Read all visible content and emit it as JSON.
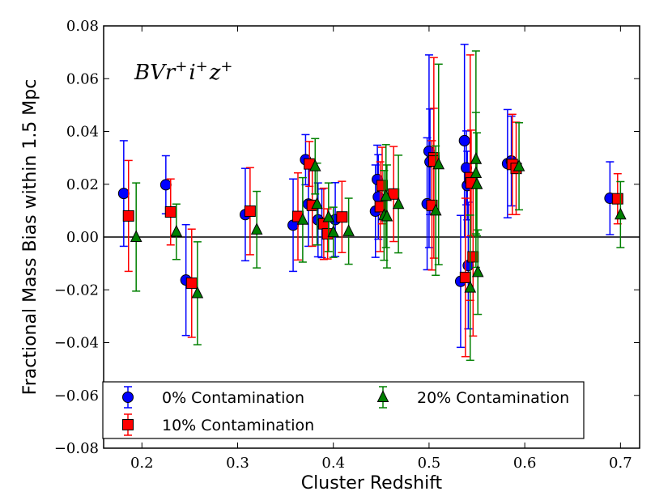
{
  "chart_data": {
    "type": "scatter",
    "title": "",
    "xlabel": "Cluster Redshift",
    "ylabel": "Fractional Mass Bias within 1.5 Mpc",
    "xlim": [
      0.16,
      0.72
    ],
    "ylim": [
      -0.08,
      0.08
    ],
    "grid": false,
    "legend_position": "bottom-left",
    "reference_line_y": 0.0,
    "annotation": {
      "base": "BVr",
      "parts": [
        {
          "t": "r",
          "sup": "+"
        },
        {
          "t": "i",
          "sup": "+"
        },
        {
          "t": "z",
          "sup": "+"
        }
      ],
      "text": "BVr+i+z+"
    },
    "x_ticks": [
      0.2,
      0.3,
      0.4,
      0.5,
      0.6,
      0.7
    ],
    "x_tick_labels": [
      "0.2",
      "0.3",
      "0.4",
      "0.5",
      "0.6",
      "0.7"
    ],
    "y_ticks": [
      -0.08,
      -0.06,
      -0.04,
      -0.02,
      0.0,
      0.02,
      0.04,
      0.06,
      0.08
    ],
    "y_tick_labels": [
      "−0.08",
      "−0.06",
      "−0.04",
      "−0.02",
      "0.00",
      "0.02",
      "0.04",
      "0.06",
      "0.08"
    ],
    "series": [
      {
        "name": "0% Contamination",
        "marker": "circle",
        "color": "#0000ff",
        "points": [
          {
            "x": 0.181,
            "y": 0.0165,
            "err": 0.02
          },
          {
            "x": 0.225,
            "y": 0.0198,
            "err": 0.011
          },
          {
            "x": 0.246,
            "y": -0.0163,
            "err": 0.021
          },
          {
            "x": 0.308,
            "y": 0.0085,
            "err": 0.0175
          },
          {
            "x": 0.358,
            "y": 0.0045,
            "err": 0.0175
          },
          {
            "x": 0.371,
            "y": 0.0293,
            "err": 0.0095
          },
          {
            "x": 0.374,
            "y": 0.0125,
            "err": 0.016
          },
          {
            "x": 0.384,
            "y": 0.0065,
            "err": 0.014
          },
          {
            "x": 0.388,
            "y": 0.0052,
            "err": 0.013
          },
          {
            "x": 0.402,
            "y": 0.0066,
            "err": 0.014
          },
          {
            "x": 0.444,
            "y": 0.0098,
            "err": 0.0175
          },
          {
            "x": 0.446,
            "y": 0.0218,
            "err": 0.013
          },
          {
            "x": 0.447,
            "y": 0.0152,
            "err": 0.016
          },
          {
            "x": 0.498,
            "y": 0.0126,
            "err": 0.025
          },
          {
            "x": 0.5,
            "y": 0.0325,
            "err": 0.0365
          },
          {
            "x": 0.501,
            "y": 0.0285,
            "err": 0.02
          },
          {
            "x": 0.533,
            "y": -0.0168,
            "err": 0.025
          },
          {
            "x": 0.537,
            "y": 0.0365,
            "err": 0.0365
          },
          {
            "x": 0.539,
            "y": 0.0262,
            "err": 0.014
          },
          {
            "x": 0.54,
            "y": 0.0195,
            "err": 0.013
          },
          {
            "x": 0.541,
            "y": -0.0108,
            "err": 0.024
          },
          {
            "x": 0.582,
            "y": 0.0278,
            "err": 0.0205
          },
          {
            "x": 0.586,
            "y": 0.0288,
            "err": 0.017
          },
          {
            "x": 0.689,
            "y": 0.0147,
            "err": 0.0138
          }
        ]
      },
      {
        "name": "10% Contamination",
        "marker": "square",
        "color": "#ff0000",
        "points": [
          {
            "x": 0.186,
            "y": 0.008,
            "err": 0.021
          },
          {
            "x": 0.23,
            "y": 0.0095,
            "err": 0.0125
          },
          {
            "x": 0.252,
            "y": -0.0175,
            "err": 0.0205
          },
          {
            "x": 0.313,
            "y": 0.0098,
            "err": 0.0165
          },
          {
            "x": 0.363,
            "y": 0.0078,
            "err": 0.0165
          },
          {
            "x": 0.375,
            "y": 0.0277,
            "err": 0.0085
          },
          {
            "x": 0.378,
            "y": 0.012,
            "err": 0.0155
          },
          {
            "x": 0.39,
            "y": 0.005,
            "err": 0.0135
          },
          {
            "x": 0.394,
            "y": 0.0012,
            "err": 0.0095
          },
          {
            "x": 0.409,
            "y": 0.0076,
            "err": 0.0135
          },
          {
            "x": 0.449,
            "y": 0.0115,
            "err": 0.017
          },
          {
            "x": 0.451,
            "y": 0.0195,
            "err": 0.0145
          },
          {
            "x": 0.463,
            "y": 0.0163,
            "err": 0.018
          },
          {
            "x": 0.503,
            "y": 0.012,
            "err": 0.0245
          },
          {
            "x": 0.505,
            "y": 0.03,
            "err": 0.038
          },
          {
            "x": 0.505,
            "y": 0.0288,
            "err": 0.02
          },
          {
            "x": 0.538,
            "y": -0.0153,
            "err": 0.03
          },
          {
            "x": 0.543,
            "y": 0.0225,
            "err": 0.0465
          },
          {
            "x": 0.544,
            "y": 0.0205,
            "err": 0.02
          },
          {
            "x": 0.546,
            "y": -0.0075,
            "err": 0.03
          },
          {
            "x": 0.587,
            "y": 0.0275,
            "err": 0.019
          },
          {
            "x": 0.591,
            "y": 0.026,
            "err": 0.0175
          },
          {
            "x": 0.697,
            "y": 0.0145,
            "err": 0.0095
          }
        ]
      },
      {
        "name": "20% Contamination",
        "marker": "triangle",
        "color": "#008000",
        "points": [
          {
            "x": 0.194,
            "y": 0.0,
            "err": 0.0205
          },
          {
            "x": 0.236,
            "y": 0.002,
            "err": 0.0105
          },
          {
            "x": 0.258,
            "y": -0.0213,
            "err": 0.0195
          },
          {
            "x": 0.32,
            "y": 0.0028,
            "err": 0.0145
          },
          {
            "x": 0.368,
            "y": 0.0065,
            "err": 0.016
          },
          {
            "x": 0.381,
            "y": 0.0268,
            "err": 0.0105
          },
          {
            "x": 0.383,
            "y": 0.0125,
            "err": 0.0155
          },
          {
            "x": 0.395,
            "y": 0.0075,
            "err": 0.013
          },
          {
            "x": 0.4,
            "y": 0.0018,
            "err": 0.0095
          },
          {
            "x": 0.416,
            "y": 0.0022,
            "err": 0.0125
          },
          {
            "x": 0.453,
            "y": 0.0082,
            "err": 0.017
          },
          {
            "x": 0.455,
            "y": 0.0155,
            "err": 0.0195
          },
          {
            "x": 0.456,
            "y": 0.0078,
            "err": 0.0195
          },
          {
            "x": 0.468,
            "y": 0.0125,
            "err": 0.0185
          },
          {
            "x": 0.507,
            "y": 0.01,
            "err": 0.0245
          },
          {
            "x": 0.51,
            "y": 0.0275,
            "err": 0.038
          },
          {
            "x": 0.543,
            "y": -0.0192,
            "err": 0.0275
          },
          {
            "x": 0.549,
            "y": 0.0295,
            "err": 0.041
          },
          {
            "x": 0.549,
            "y": 0.0242,
            "err": 0.023
          },
          {
            "x": 0.55,
            "y": 0.02,
            "err": 0.0195
          },
          {
            "x": 0.551,
            "y": -0.0133,
            "err": 0.016
          },
          {
            "x": 0.594,
            "y": 0.0268,
            "err": 0.0165
          },
          {
            "x": 0.7,
            "y": 0.0085,
            "err": 0.0125
          }
        ]
      }
    ]
  }
}
